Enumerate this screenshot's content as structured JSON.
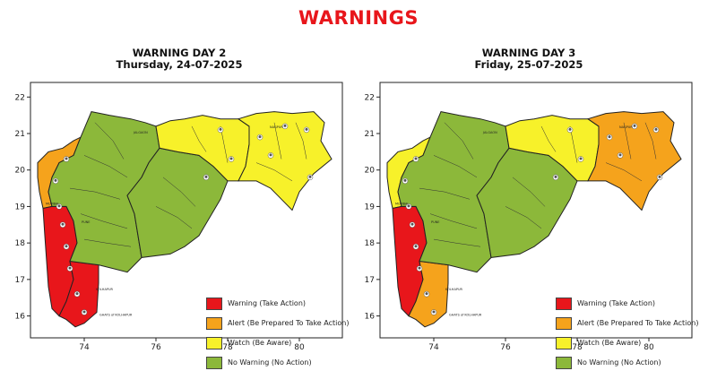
{
  "page": {
    "title": "WARNINGS"
  },
  "colors": {
    "warning": "#e8161b",
    "alert": "#f5a31c",
    "watch": "#f7f12a",
    "no_warning": "#8cb83a",
    "border": "#222222"
  },
  "legend": [
    {
      "key": "warning",
      "label": "Warning (Take Action)"
    },
    {
      "key": "alert",
      "label": "Alert (Be Prepared To Take Action)"
    },
    {
      "key": "watch",
      "label": "Watch (Be Aware)"
    },
    {
      "key": "no_warning",
      "label": "No Warning (No Action)"
    }
  ],
  "axes": {
    "x_ticks": [
      "74",
      "76",
      "78",
      "80"
    ],
    "y_ticks": [
      "22",
      "21",
      "20",
      "19",
      "18",
      "17",
      "16"
    ],
    "x_range": [
      72.5,
      81.2
    ],
    "y_range": [
      15.4,
      22.4
    ]
  },
  "panels": [
    {
      "title": "WARNING DAY 2",
      "subtitle": "Thursday, 24-07-2025",
      "legend": [
        {
          "key": "warning",
          "label": "Warning (Take Action)"
        },
        {
          "key": "alert",
          "label": "Alert (Be Prepared To Take Action)"
        },
        {
          "key": "watch",
          "label": "Watch (Be Aware)"
        },
        {
          "key": "no_warning",
          "label": "No Warning (No Action)"
        }
      ],
      "regions": [
        {
          "name": "north-konkan-ghats",
          "level": "alert"
        },
        {
          "name": "south-konkan-ghats",
          "level": "warning"
        },
        {
          "name": "kolhapur-ghats",
          "level": "warning"
        },
        {
          "name": "madhya-maharashtra",
          "level": "no_warning"
        },
        {
          "name": "marathwada",
          "level": "no_warning"
        },
        {
          "name": "vidarbha-west",
          "level": "watch"
        },
        {
          "name": "vidarbha-east",
          "level": "watch"
        }
      ],
      "cities": [
        "MUMBAI",
        "JALGAON",
        "NAGPUR",
        "PUNE",
        "KOLHAPUR",
        "GHATS of KOLHAPUR"
      ]
    },
    {
      "title": "WARNING DAY 3",
      "subtitle": "Friday, 25-07-2025",
      "legend": [
        {
          "key": "warning",
          "label": "Warning (Take Action)"
        },
        {
          "key": "alert",
          "label": "Alert (Be Prepared To Take Action)"
        },
        {
          "key": "watch",
          "label": "Watch (Be Aware)"
        },
        {
          "key": "no_warning",
          "label": "No Warning (No Action)"
        }
      ],
      "regions": [
        {
          "name": "north-konkan-ghats",
          "level": "watch"
        },
        {
          "name": "south-konkan-ghats",
          "level": "warning"
        },
        {
          "name": "kolhapur-ghats",
          "level": "alert"
        },
        {
          "name": "madhya-maharashtra",
          "level": "no_warning"
        },
        {
          "name": "marathwada",
          "level": "no_warning"
        },
        {
          "name": "vidarbha-west",
          "level": "watch"
        },
        {
          "name": "vidarbha-east",
          "level": "alert"
        }
      ],
      "cities": [
        "MUMBAI",
        "JALGAON",
        "NAGPUR",
        "PUNE",
        "KOLHAPUR",
        "GHATS of KOLHAPUR"
      ]
    }
  ]
}
